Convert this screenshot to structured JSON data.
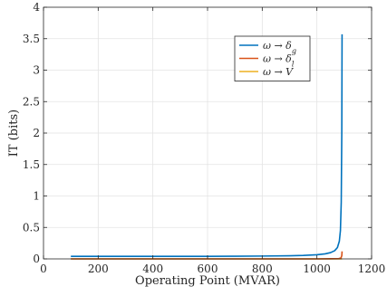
{
  "chart_data": {
    "type": "line",
    "xlabel": "Operating Point (MVAR)",
    "ylabel": "IT (bits)",
    "xlim": [
      0,
      1200
    ],
    "ylim": [
      0,
      4
    ],
    "xticks": [
      0,
      200,
      400,
      600,
      800,
      1000,
      1200
    ],
    "yticks": [
      0,
      0.5,
      1,
      1.5,
      2,
      2.5,
      3,
      3.5,
      4
    ],
    "xtick_labels": [
      "0",
      "200",
      "400",
      "600",
      "800",
      "1000",
      "1200"
    ],
    "ytick_labels": [
      "0",
      "0.5",
      "1",
      "1.5",
      "2",
      "2.5",
      "3",
      "3.5",
      "4"
    ],
    "grid": true,
    "legend_position": "top-right",
    "series": [
      {
        "name": "ω → δ_g",
        "color": "#0072BD",
        "x": [
          100,
          200,
          300,
          400,
          500,
          600,
          700,
          800,
          900,
          950,
          1000,
          1030,
          1050,
          1065,
          1075,
          1082,
          1086,
          1089,
          1091,
          1092
        ],
        "y": [
          0.04,
          0.04,
          0.04,
          0.04,
          0.04,
          0.04,
          0.042,
          0.045,
          0.05,
          0.055,
          0.065,
          0.08,
          0.1,
          0.13,
          0.18,
          0.28,
          0.45,
          0.9,
          2.0,
          3.57
        ]
      },
      {
        "name": "ω → δ_l",
        "color": "#D95319",
        "x": [
          100,
          300,
          500,
          700,
          900,
          1000,
          1050,
          1080,
          1088,
          1091,
          1092
        ],
        "y": [
          0.0,
          0.0,
          0.0,
          0.0,
          0.0,
          0.0,
          0.002,
          0.005,
          0.015,
          0.05,
          0.12
        ]
      },
      {
        "name": "ω → V",
        "color": "#EDB120",
        "x": [
          100,
          300,
          500,
          700,
          900,
          1000,
          1092
        ],
        "y": [
          0.0,
          0.0,
          0.0,
          0.0,
          0.0,
          0.0,
          0.0
        ]
      }
    ]
  }
}
